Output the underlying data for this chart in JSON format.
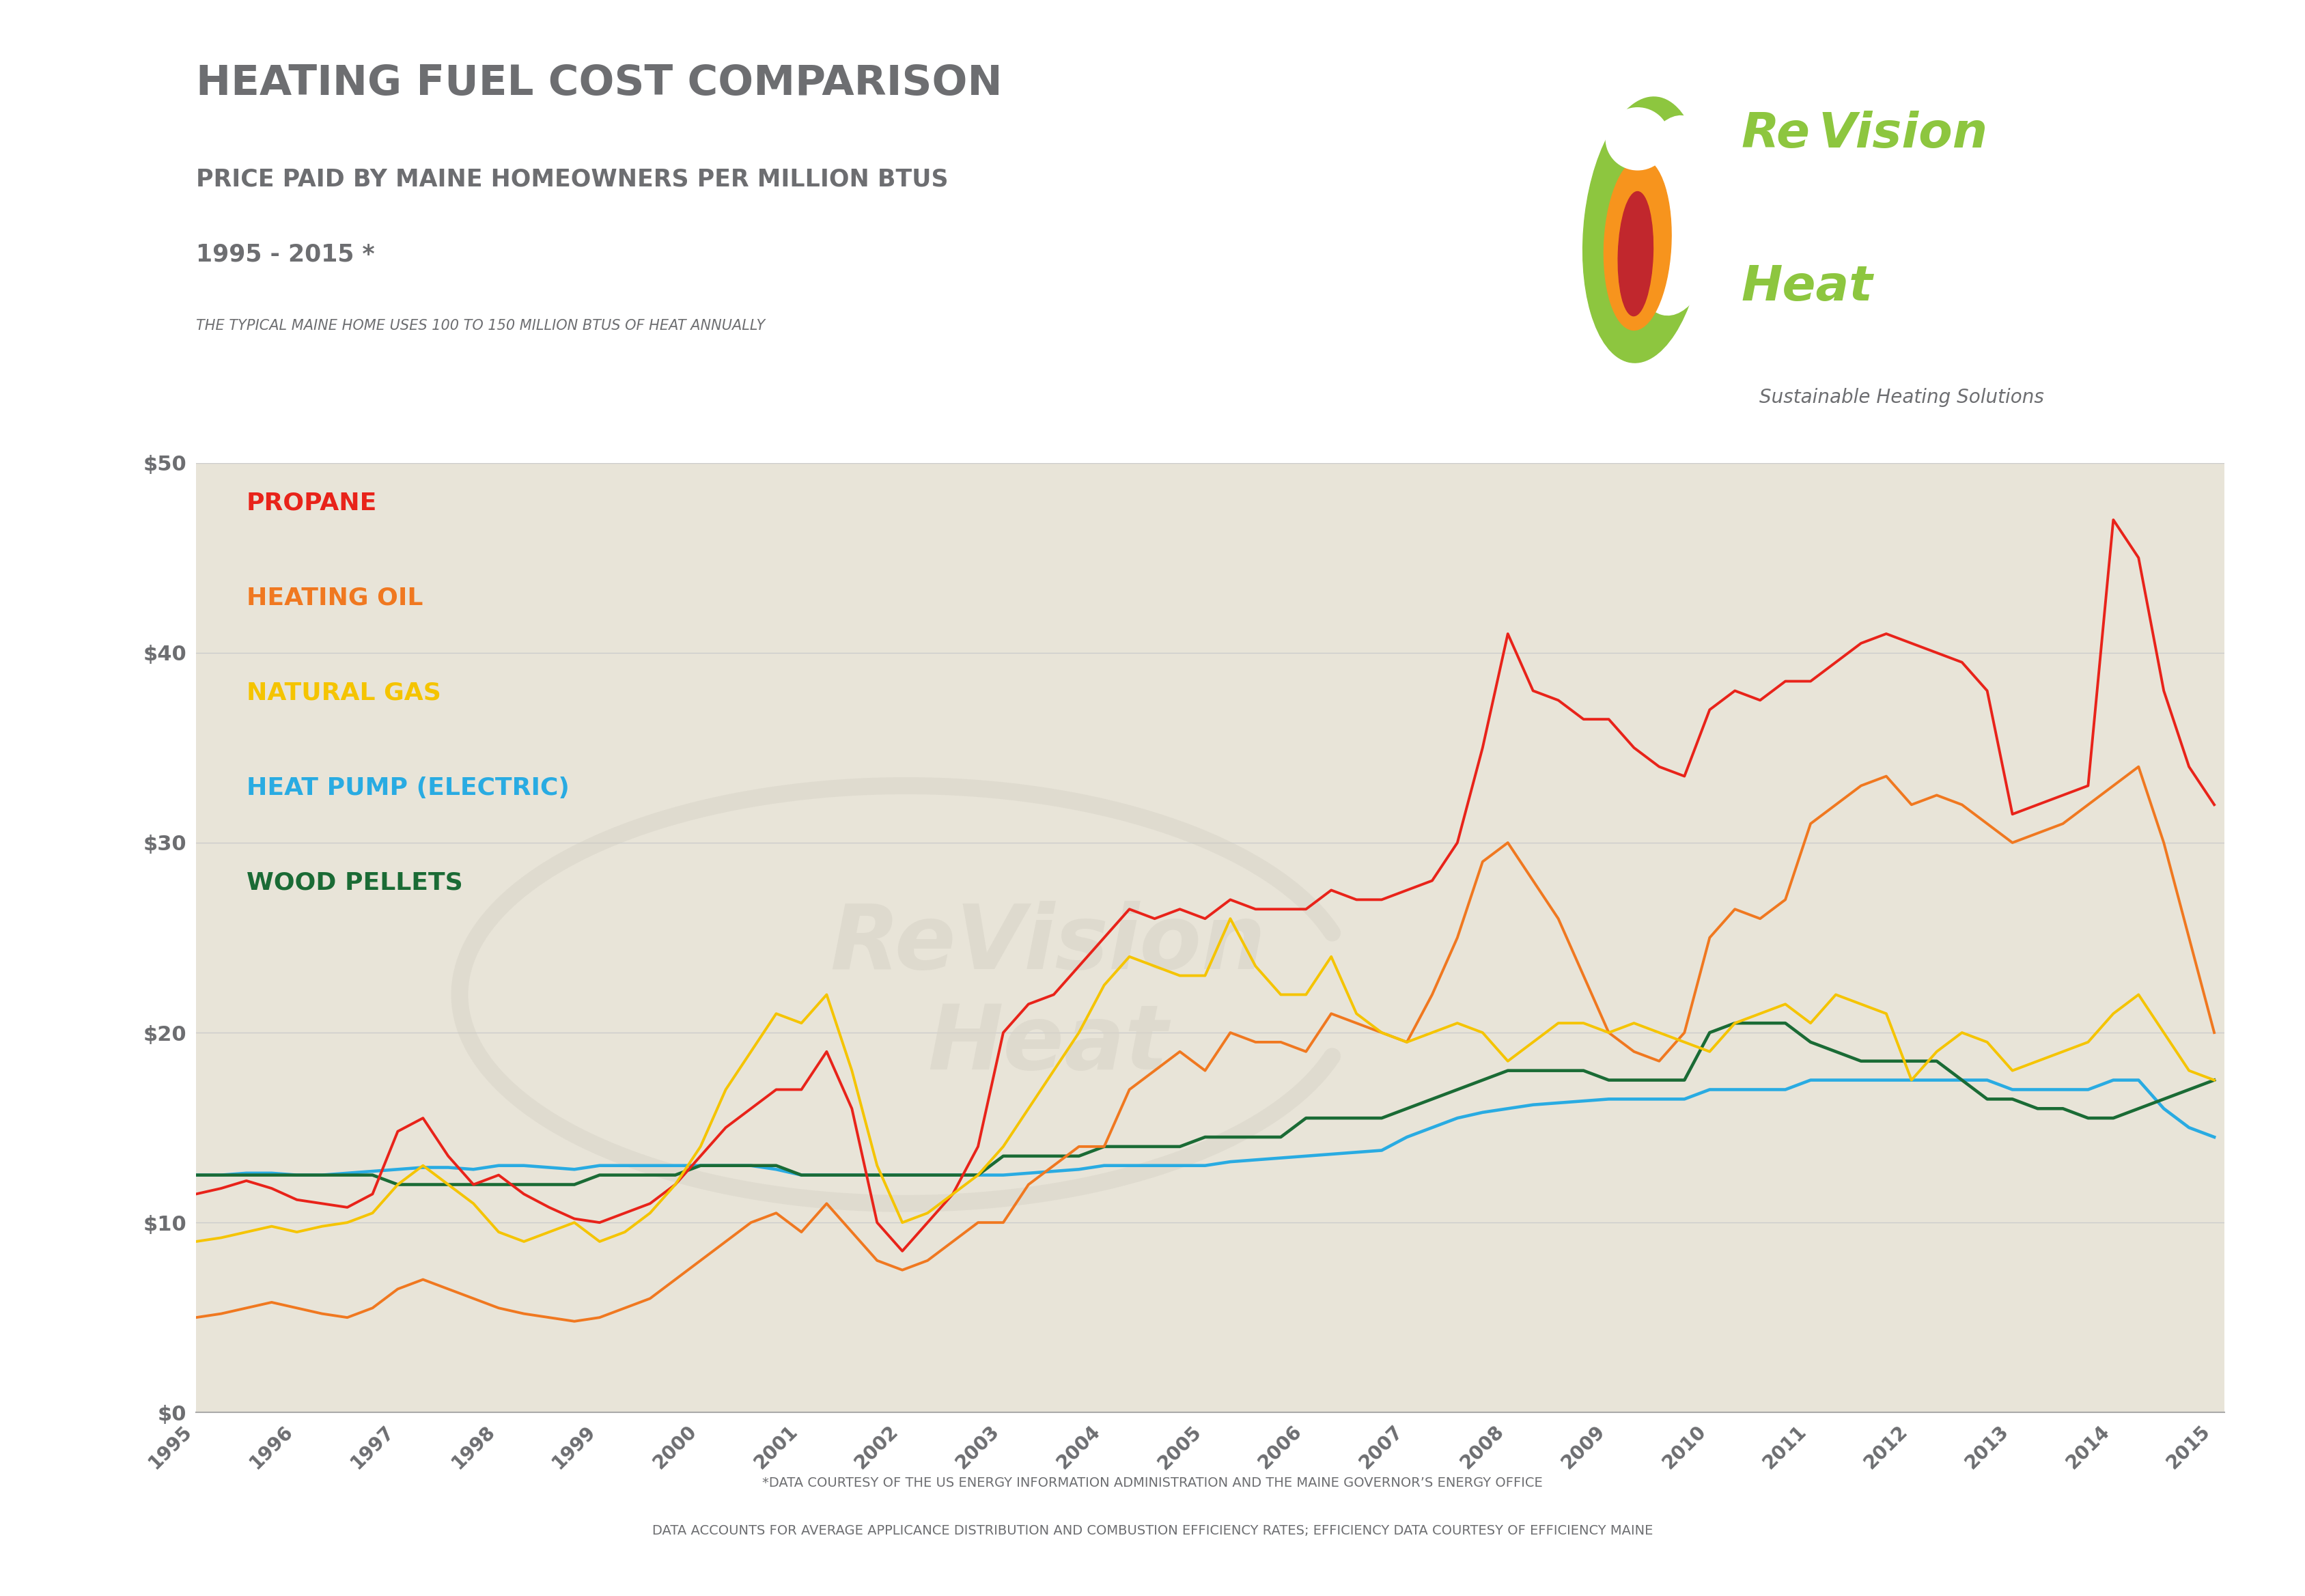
{
  "title": "HEATING FUEL COST COMPARISON",
  "subtitle1": "PRICE PAID BY MAINE HOMEOWNERS PER MILLION BTUS",
  "subtitle2": "1995 - 2015 *",
  "subtitle3": "THE TYPICAL MAINE HOME USES 100 TO 150 MILLION BTUS OF HEAT ANNUALLY",
  "footer1": "*DATA COURTESY OF THE US ENERGY INFORMATION ADMINISTRATION AND THE MAINE GOVERNOR’S ENERGY OFFICE",
  "footer2": "DATA ACCOUNTS FOR AVERAGE APPLICANCE DISTRIBUTION AND COMBUSTION EFFICIENCY RATES; EFFICIENCY DATA COURTESY OF EFFICIENCY MAINE",
  "bg_color": "#e8e4d8",
  "outer_bg": "#ffffff",
  "border_color": "#8dc63f",
  "years": [
    1995,
    1995.25,
    1995.5,
    1995.75,
    1996,
    1996.25,
    1996.5,
    1996.75,
    1997,
    1997.25,
    1997.5,
    1997.75,
    1998,
    1998.25,
    1998.5,
    1998.75,
    1999,
    1999.25,
    1999.5,
    1999.75,
    2000,
    2000.25,
    2000.5,
    2000.75,
    2001,
    2001.25,
    2001.5,
    2001.75,
    2002,
    2002.25,
    2002.5,
    2002.75,
    2003,
    2003.25,
    2003.5,
    2003.75,
    2004,
    2004.25,
    2004.5,
    2004.75,
    2005,
    2005.25,
    2005.5,
    2005.75,
    2006,
    2006.25,
    2006.5,
    2006.75,
    2007,
    2007.25,
    2007.5,
    2007.75,
    2008,
    2008.25,
    2008.5,
    2008.75,
    2009,
    2009.25,
    2009.5,
    2009.75,
    2010,
    2010.25,
    2010.5,
    2010.75,
    2011,
    2011.25,
    2011.5,
    2011.75,
    2012,
    2012.25,
    2012.5,
    2012.75,
    2013,
    2013.25,
    2013.5,
    2013.75,
    2014,
    2014.25,
    2014.5,
    2014.75,
    2015
  ],
  "propane": [
    11.5,
    11.8,
    12.2,
    11.8,
    11.2,
    11.0,
    10.8,
    11.5,
    14.8,
    15.5,
    13.5,
    12.0,
    12.5,
    11.5,
    10.8,
    10.2,
    10.0,
    10.5,
    11.0,
    12.0,
    13.5,
    15.0,
    16.0,
    17.0,
    17.0,
    19.0,
    16.0,
    10.0,
    8.5,
    10.0,
    11.5,
    14.0,
    20.0,
    21.5,
    22.0,
    23.5,
    25.0,
    26.5,
    26.0,
    26.5,
    26.0,
    27.0,
    26.5,
    26.5,
    26.5,
    27.5,
    27.0,
    27.0,
    27.5,
    28.0,
    30.0,
    35.0,
    41.0,
    38.0,
    37.5,
    36.5,
    36.5,
    35.0,
    34.0,
    33.5,
    37.0,
    38.0,
    37.5,
    38.5,
    38.5,
    39.5,
    40.5,
    41.0,
    40.5,
    40.0,
    39.5,
    38.0,
    31.5,
    32.0,
    32.5,
    33.0,
    47.0,
    45.0,
    38.0,
    34.0,
    32.0
  ],
  "heating_oil": [
    5.0,
    5.2,
    5.5,
    5.8,
    5.5,
    5.2,
    5.0,
    5.5,
    6.5,
    7.0,
    6.5,
    6.0,
    5.5,
    5.2,
    5.0,
    4.8,
    5.0,
    5.5,
    6.0,
    7.0,
    8.0,
    9.0,
    10.0,
    10.5,
    9.5,
    11.0,
    9.5,
    8.0,
    7.5,
    8.0,
    9.0,
    10.0,
    10.0,
    12.0,
    13.0,
    14.0,
    14.0,
    17.0,
    18.0,
    19.0,
    18.0,
    20.0,
    19.5,
    19.5,
    19.0,
    21.0,
    20.5,
    20.0,
    19.5,
    22.0,
    25.0,
    29.0,
    30.0,
    28.0,
    26.0,
    23.0,
    20.0,
    19.0,
    18.5,
    20.0,
    25.0,
    26.5,
    26.0,
    27.0,
    31.0,
    32.0,
    33.0,
    33.5,
    32.0,
    32.5,
    32.0,
    31.0,
    30.0,
    30.5,
    31.0,
    32.0,
    33.0,
    34.0,
    30.0,
    25.0,
    20.0
  ],
  "natural_gas": [
    9.0,
    9.2,
    9.5,
    9.8,
    9.5,
    9.8,
    10.0,
    10.5,
    12.0,
    13.0,
    12.0,
    11.0,
    9.5,
    9.0,
    9.5,
    10.0,
    9.0,
    9.5,
    10.5,
    12.0,
    14.0,
    17.0,
    19.0,
    21.0,
    20.5,
    22.0,
    18.0,
    13.0,
    10.0,
    10.5,
    11.5,
    12.5,
    14.0,
    16.0,
    18.0,
    20.0,
    22.5,
    24.0,
    23.5,
    23.0,
    23.0,
    26.0,
    23.5,
    22.0,
    22.0,
    24.0,
    21.0,
    20.0,
    19.5,
    20.0,
    20.5,
    20.0,
    18.5,
    19.5,
    20.5,
    20.5,
    20.0,
    20.5,
    20.0,
    19.5,
    19.0,
    20.5,
    21.0,
    21.5,
    20.5,
    22.0,
    21.5,
    21.0,
    17.5,
    19.0,
    20.0,
    19.5,
    18.0,
    18.5,
    19.0,
    19.5,
    21.0,
    22.0,
    20.0,
    18.0,
    17.5
  ],
  "heat_pump": [
    12.5,
    12.5,
    12.6,
    12.6,
    12.5,
    12.5,
    12.6,
    12.7,
    12.8,
    12.9,
    12.9,
    12.8,
    13.0,
    13.0,
    12.9,
    12.8,
    13.0,
    13.0,
    13.0,
    13.0,
    13.0,
    13.0,
    13.0,
    12.8,
    12.5,
    12.5,
    12.5,
    12.5,
    12.5,
    12.5,
    12.5,
    12.5,
    12.5,
    12.6,
    12.7,
    12.8,
    13.0,
    13.0,
    13.0,
    13.0,
    13.0,
    13.2,
    13.3,
    13.4,
    13.5,
    13.6,
    13.7,
    13.8,
    14.5,
    15.0,
    15.5,
    15.8,
    16.0,
    16.2,
    16.3,
    16.4,
    16.5,
    16.5,
    16.5,
    16.5,
    17.0,
    17.0,
    17.0,
    17.0,
    17.5,
    17.5,
    17.5,
    17.5,
    17.5,
    17.5,
    17.5,
    17.5,
    17.0,
    17.0,
    17.0,
    17.0,
    17.5,
    17.5,
    16.0,
    15.0,
    14.5
  ],
  "wood_pellets": [
    12.5,
    12.5,
    12.5,
    12.5,
    12.5,
    12.5,
    12.5,
    12.5,
    12.0,
    12.0,
    12.0,
    12.0,
    12.0,
    12.0,
    12.0,
    12.0,
    12.5,
    12.5,
    12.5,
    12.5,
    13.0,
    13.0,
    13.0,
    13.0,
    12.5,
    12.5,
    12.5,
    12.5,
    12.5,
    12.5,
    12.5,
    12.5,
    13.5,
    13.5,
    13.5,
    13.5,
    14.0,
    14.0,
    14.0,
    14.0,
    14.5,
    14.5,
    14.5,
    14.5,
    15.5,
    15.5,
    15.5,
    15.5,
    16.0,
    16.5,
    17.0,
    17.5,
    18.0,
    18.0,
    18.0,
    18.0,
    17.5,
    17.5,
    17.5,
    17.5,
    20.0,
    20.5,
    20.5,
    20.5,
    19.5,
    19.0,
    18.5,
    18.5,
    18.5,
    18.5,
    17.5,
    16.5,
    16.5,
    16.0,
    16.0,
    15.5,
    15.5,
    16.0,
    16.5,
    17.0,
    17.5
  ],
  "propane_color": "#e8231a",
  "heating_oil_color": "#f07820",
  "natural_gas_color": "#f5c400",
  "heat_pump_color": "#29abe2",
  "wood_pellets_color": "#1a6b35",
  "title_color": "#6d6e71",
  "legend_labels": [
    "PROPANE",
    "HEATING OIL",
    "NATURAL GAS",
    "HEAT PUMP (ELECTRIC)",
    "WOOD PELLETS"
  ],
  "legend_colors": [
    "#e8231a",
    "#f07820",
    "#f5c400",
    "#29abe2",
    "#1a6b35"
  ],
  "ylim": [
    0,
    50
  ],
  "yticks": [
    0,
    10,
    20,
    30,
    40,
    50
  ],
  "ytick_labels": [
    "$0",
    "$10",
    "$20",
    "$30",
    "$40",
    "$50"
  ],
  "logo_green": "#8dc63f",
  "logo_orange": "#f7941d",
  "logo_red": "#c1272d",
  "logo_text_color": "#8dc63f",
  "sustainable_text_color": "#6d6e71"
}
